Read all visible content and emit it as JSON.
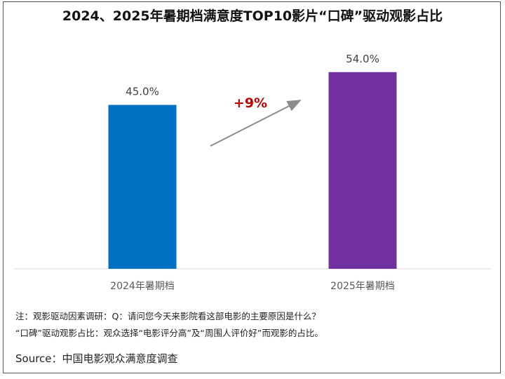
{
  "chart_data": {
    "type": "bar",
    "title": "2024、2025年暑期档满意度TOP10影片“口碑”驱动观影占比",
    "categories": [
      "2024年暑期档",
      "2025年暑期档"
    ],
    "values": [
      45.0,
      54.0
    ],
    "value_labels": [
      "45.0%",
      "54.0%"
    ],
    "colors": [
      "#0070C0",
      "#7030A0"
    ],
    "annotation": "+9%",
    "annotation_color": "#C00000",
    "xlabel": "",
    "ylabel": "",
    "ylim": [
      0,
      73.8
    ],
    "grid": false
  },
  "notes": [
    "注：观影驱动因素调研：Q：请问您今天来影院看这部电影的主要原因是什么？",
    "“口碑”驱动观影占比：观众选择“电影评分高”及“周围人评价好”而观影的占比。"
  ],
  "source": "Source：中国电影观众满意度调查"
}
